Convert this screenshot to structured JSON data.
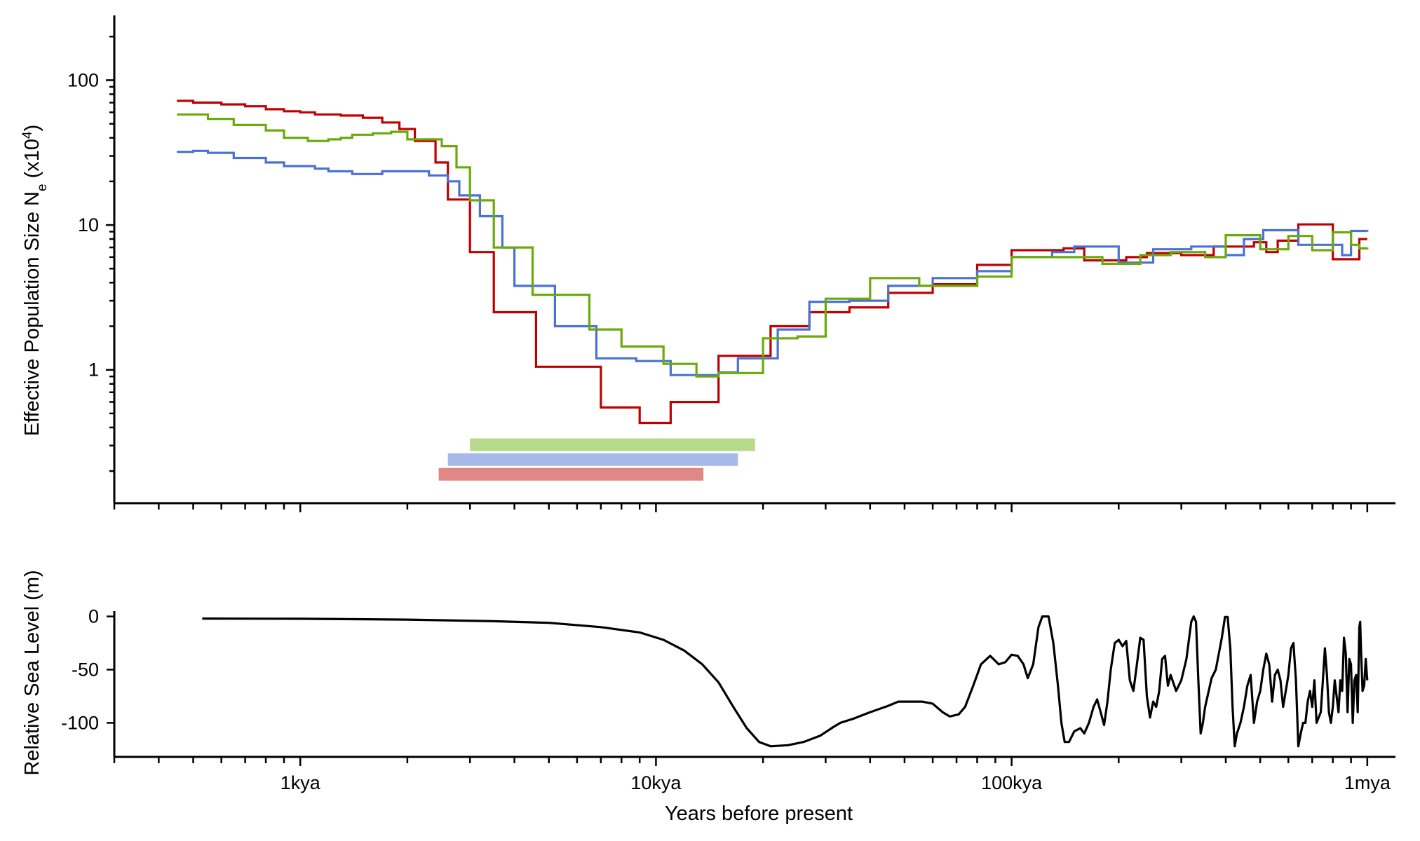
{
  "chart_data": [
    {
      "type": "line",
      "subtype": "step",
      "ylabel": {
        "text": "Effective Population Size N",
        "sub": "e",
        "tail": " (x10",
        "sup": "4",
        "close": ")"
      },
      "x_scale": "log",
      "y_scale": "log",
      "xlim": [
        300,
        1200000
      ],
      "ylim": [
        0.12,
        280
      ],
      "y_ticks": [
        {
          "value": 1,
          "label": "1"
        },
        {
          "value": 10,
          "label": "10"
        },
        {
          "value": 100,
          "label": "100"
        }
      ],
      "colors": {
        "red": "#c00000",
        "blue": "#4a72d4",
        "green": "#6aaa0a"
      },
      "series": [
        {
          "color_key": "red",
          "points": [
            [
              450,
              72
            ],
            [
              500,
              70
            ],
            [
              600,
              68
            ],
            [
              700,
              66
            ],
            [
              800,
              63
            ],
            [
              900,
              61
            ],
            [
              1000,
              60
            ],
            [
              1100,
              58
            ],
            [
              1300,
              57
            ],
            [
              1500,
              55
            ],
            [
              1700,
              51
            ],
            [
              1900,
              46
            ],
            [
              2100,
              38
            ],
            [
              2400,
              27
            ],
            [
              2600,
              15
            ],
            [
              3000,
              6.5
            ],
            [
              3500,
              2.5
            ],
            [
              4600,
              1.05
            ],
            [
              7000,
              0.55
            ],
            [
              9000,
              0.43
            ],
            [
              11000,
              0.6
            ],
            [
              15000,
              1.25
            ],
            [
              21000,
              2.0
            ],
            [
              27000,
              2.5
            ],
            [
              35000,
              2.7
            ],
            [
              45000,
              3.4
            ],
            [
              60000,
              3.9
            ],
            [
              80000,
              5.3
            ],
            [
              100000,
              6.7
            ],
            [
              140000,
              6.9
            ],
            [
              160000,
              5.7
            ],
            [
              210000,
              6.0
            ],
            [
              240000,
              6.4
            ],
            [
              300000,
              6.2
            ],
            [
              370000,
              7.1
            ],
            [
              480000,
              7.6
            ],
            [
              520000,
              6.5
            ],
            [
              560000,
              7.8
            ],
            [
              640000,
              10.1
            ],
            [
              800000,
              5.8
            ],
            [
              950000,
              8.0
            ],
            [
              1000000,
              8.0
            ]
          ]
        },
        {
          "color_key": "blue",
          "points": [
            [
              450,
              32
            ],
            [
              500,
              32.5
            ],
            [
              550,
              31.5
            ],
            [
              650,
              29
            ],
            [
              800,
              27
            ],
            [
              900,
              25.5
            ],
            [
              1100,
              24.5
            ],
            [
              1200,
              23.5
            ],
            [
              1400,
              22.5
            ],
            [
              1700,
              23.5
            ],
            [
              2300,
              22
            ],
            [
              2600,
              20
            ],
            [
              2800,
              16
            ],
            [
              3200,
              11.5
            ],
            [
              3700,
              7
            ],
            [
              4000,
              3.8
            ],
            [
              5200,
              2.0
            ],
            [
              6800,
              1.2
            ],
            [
              8800,
              1.15
            ],
            [
              11000,
              0.92
            ],
            [
              15000,
              0.96
            ],
            [
              17000,
              1.2
            ],
            [
              22000,
              1.9
            ],
            [
              27000,
              2.95
            ],
            [
              35000,
              3.0
            ],
            [
              45000,
              3.8
            ],
            [
              60000,
              4.3
            ],
            [
              80000,
              4.8
            ],
            [
              100000,
              6.0
            ],
            [
              130000,
              6.5
            ],
            [
              150000,
              7.1
            ],
            [
              200000,
              5.5
            ],
            [
              250000,
              6.8
            ],
            [
              320000,
              7.1
            ],
            [
              400000,
              6.2
            ],
            [
              450000,
              8.0
            ],
            [
              510000,
              9.2
            ],
            [
              640000,
              7.3
            ],
            [
              850000,
              6.2
            ],
            [
              900000,
              9.1
            ],
            [
              1000000,
              9.0
            ]
          ]
        },
        {
          "color_key": "green",
          "points": [
            [
              450,
              58
            ],
            [
              550,
              54
            ],
            [
              650,
              49
            ],
            [
              800,
              45
            ],
            [
              900,
              40
            ],
            [
              1050,
              38
            ],
            [
              1200,
              39
            ],
            [
              1300,
              40
            ],
            [
              1400,
              42
            ],
            [
              1600,
              43
            ],
            [
              1800,
              44
            ],
            [
              2000,
              39
            ],
            [
              2500,
              35
            ],
            [
              2750,
              25
            ],
            [
              3000,
              14.8
            ],
            [
              3500,
              7
            ],
            [
              4500,
              3.3
            ],
            [
              6500,
              1.9
            ],
            [
              8000,
              1.45
            ],
            [
              10500,
              1.1
            ],
            [
              13000,
              0.9
            ],
            [
              15000,
              0.95
            ],
            [
              20000,
              1.65
            ],
            [
              25000,
              1.7
            ],
            [
              30000,
              3.1
            ],
            [
              40000,
              4.3
            ],
            [
              55000,
              3.8
            ],
            [
              80000,
              4.4
            ],
            [
              100000,
              6.0
            ],
            [
              140000,
              6.0
            ],
            [
              180000,
              5.4
            ],
            [
              230000,
              6.2
            ],
            [
              280000,
              6.5
            ],
            [
              350000,
              6.0
            ],
            [
              400000,
              8.5
            ],
            [
              500000,
              6.8
            ],
            [
              600000,
              8.4
            ],
            [
              700000,
              6.7
            ],
            [
              800000,
              8.9
            ],
            [
              900000,
              7.3
            ],
            [
              950000,
              6.9
            ],
            [
              1000000,
              7.0
            ]
          ]
        }
      ],
      "ranges": [
        {
          "color_key": "green",
          "from": 3000,
          "to": 19000,
          "y": 0.304
        },
        {
          "color_key": "blue",
          "from": 2600,
          "to": 17000,
          "y": 0.24
        },
        {
          "color_key": "red",
          "from": 2450,
          "to": 13600,
          "y": 0.19
        }
      ],
      "range_colors": {
        "green": "#b8d98a",
        "blue": "#a6b9e8",
        "red": "#e08787"
      }
    },
    {
      "type": "line",
      "ylabel": "Relative Sea Level (m)",
      "xlabel": "Years before present",
      "x_scale": "log",
      "xlim": [
        300,
        1200000
      ],
      "ylim": [
        -132,
        5
      ],
      "y_ticks": [
        {
          "value": 0,
          "label": "0"
        },
        {
          "value": -50,
          "label": "-50"
        },
        {
          "value": -100,
          "label": "-100"
        }
      ],
      "x_ticks": [
        {
          "value": 1000,
          "label": "1kya"
        },
        {
          "value": 10000,
          "label": "10kya"
        },
        {
          "value": 100000,
          "label": "100kya"
        },
        {
          "value": 1000000,
          "label": "1mya"
        }
      ],
      "color": "#000000",
      "points": [
        [
          530,
          -2
        ],
        [
          1000,
          -2.2
        ],
        [
          2000,
          -3
        ],
        [
          3500,
          -4.5
        ],
        [
          5000,
          -6
        ],
        [
          7000,
          -10
        ],
        [
          9000,
          -15
        ],
        [
          10500,
          -22
        ],
        [
          12000,
          -32
        ],
        [
          13500,
          -45
        ],
        [
          15000,
          -62
        ],
        [
          16500,
          -85
        ],
        [
          18000,
          -105
        ],
        [
          19500,
          -118
        ],
        [
          21000,
          -122
        ],
        [
          23500,
          -121
        ],
        [
          26000,
          -118
        ],
        [
          29000,
          -112
        ],
        [
          31500,
          -104
        ],
        [
          33000,
          -100
        ],
        [
          36000,
          -96
        ],
        [
          40000,
          -90
        ],
        [
          45000,
          -84
        ],
        [
          48000,
          -80
        ],
        [
          52000,
          -80
        ],
        [
          56000,
          -80
        ],
        [
          60000,
          -82
        ],
        [
          64000,
          -90
        ],
        [
          67000,
          -94
        ],
        [
          71000,
          -92
        ],
        [
          74000,
          -85
        ],
        [
          78000,
          -65
        ],
        [
          82000,
          -45
        ],
        [
          87000,
          -37
        ],
        [
          92000,
          -45
        ],
        [
          96000,
          -43
        ],
        [
          100000,
          -36
        ],
        [
          104000,
          -37
        ],
        [
          108000,
          -45
        ],
        [
          111000,
          -58
        ],
        [
          115000,
          -45
        ],
        [
          119000,
          -10
        ],
        [
          122000,
          0
        ],
        [
          127000,
          0
        ],
        [
          131000,
          -25
        ],
        [
          135000,
          -65
        ],
        [
          138000,
          -100
        ],
        [
          141000,
          -118
        ],
        [
          145000,
          -118
        ],
        [
          150000,
          -108
        ],
        [
          156000,
          -105
        ],
        [
          160000,
          -110
        ],
        [
          165000,
          -100
        ],
        [
          170000,
          -85
        ],
        [
          174000,
          -78
        ],
        [
          178000,
          -90
        ],
        [
          182000,
          -102
        ],
        [
          186000,
          -80
        ],
        [
          190000,
          -50
        ],
        [
          195000,
          -25
        ],
        [
          200000,
          -22
        ],
        [
          205000,
          -28
        ],
        [
          210000,
          -23
        ],
        [
          215000,
          -60
        ],
        [
          220000,
          -70
        ],
        [
          225000,
          -45
        ],
        [
          230000,
          -20
        ],
        [
          235000,
          -22
        ],
        [
          240000,
          -75
        ],
        [
          245000,
          -95
        ],
        [
          250000,
          -80
        ],
        [
          255000,
          -85
        ],
        [
          260000,
          -70
        ],
        [
          265000,
          -40
        ],
        [
          270000,
          -37
        ],
        [
          275000,
          -65
        ],
        [
          280000,
          -55
        ],
        [
          290000,
          -70
        ],
        [
          300000,
          -60
        ],
        [
          310000,
          -40
        ],
        [
          320000,
          -5
        ],
        [
          325000,
          0
        ],
        [
          330000,
          -5
        ],
        [
          335000,
          -60
        ],
        [
          340000,
          -110
        ],
        [
          345000,
          -100
        ],
        [
          350000,
          -85
        ],
        [
          365000,
          -58
        ],
        [
          375000,
          -50
        ],
        [
          390000,
          -20
        ],
        [
          398000,
          -0.5
        ],
        [
          405000,
          -0.5
        ],
        [
          412000,
          -30
        ],
        [
          418000,
          -85
        ],
        [
          424000,
          -122
        ],
        [
          430000,
          -110
        ],
        [
          440000,
          -100
        ],
        [
          450000,
          -85
        ],
        [
          460000,
          -65
        ],
        [
          470000,
          -55
        ],
        [
          480000,
          -100
        ],
        [
          490000,
          -80
        ],
        [
          500000,
          -70
        ],
        [
          510000,
          -50
        ],
        [
          520000,
          -35
        ],
        [
          530000,
          -45
        ],
        [
          540000,
          -80
        ],
        [
          550000,
          -55
        ],
        [
          560000,
          -50
        ],
        [
          570000,
          -60
        ],
        [
          580000,
          -85
        ],
        [
          590000,
          -70
        ],
        [
          600000,
          -55
        ],
        [
          610000,
          -30
        ],
        [
          620000,
          -25
        ],
        [
          630000,
          -60
        ],
        [
          640000,
          -122
        ],
        [
          650000,
          -110
        ],
        [
          660000,
          -100
        ],
        [
          670000,
          -100
        ],
        [
          680000,
          -80
        ],
        [
          690000,
          -70
        ],
        [
          700000,
          -85
        ],
        [
          710000,
          -60
        ],
        [
          720000,
          -100
        ],
        [
          730000,
          -95
        ],
        [
          740000,
          -90
        ],
        [
          750000,
          -60
        ],
        [
          760000,
          -30
        ],
        [
          770000,
          -55
        ],
        [
          780000,
          -90
        ],
        [
          790000,
          -100
        ],
        [
          800000,
          -85
        ],
        [
          810000,
          -60
        ],
        [
          820000,
          -75
        ],
        [
          830000,
          -90
        ],
        [
          840000,
          -60
        ],
        [
          850000,
          -70
        ],
        [
          860000,
          -20
        ],
        [
          870000,
          -35
        ],
        [
          880000,
          -90
        ],
        [
          890000,
          -40
        ],
        [
          900000,
          -45
        ],
        [
          910000,
          -100
        ],
        [
          920000,
          -60
        ],
        [
          930000,
          -55
        ],
        [
          940000,
          -90
        ],
        [
          950000,
          -10
        ],
        [
          955000,
          -5
        ],
        [
          960000,
          -30
        ],
        [
          970000,
          -70
        ],
        [
          980000,
          -65
        ],
        [
          990000,
          -40
        ],
        [
          1000000,
          -60
        ]
      ]
    }
  ]
}
